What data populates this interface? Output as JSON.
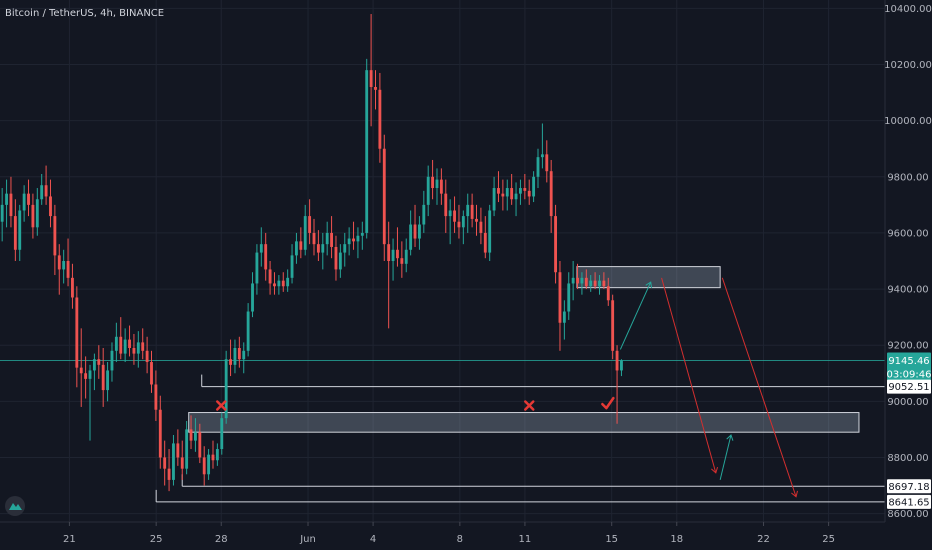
{
  "header": {
    "title": "Bitcoin / TetherUS, 4h, BINANCE"
  },
  "colors": {
    "background": "#131722",
    "grid": "#1f2431",
    "up": "#26a69a",
    "down": "#ef5350",
    "axis_text": "#b2b5be",
    "box_fill": "#b2c4d8",
    "arrow_red": "#d32f2f",
    "arrow_green": "#26a69a",
    "current_price": "#26a69a",
    "tag_light": "#ffffff"
  },
  "icons": {
    "logo": "tradingview-logo-icon",
    "cross": "x-mark-icon",
    "check": "check-mark-icon"
  },
  "chart_data": {
    "type": "candlestick",
    "symbol": "Bitcoin / TetherUS",
    "interval": "4h",
    "exchange": "BINANCE",
    "title": "Bitcoin / TetherUS, 4h, BINANCE",
    "ylim": [
      8570,
      10430
    ],
    "yticks": [
      10400,
      10200,
      10000,
      9800,
      9600,
      9400,
      9200,
      9000,
      8800,
      8600
    ],
    "ytick_labels": [
      "10400.00",
      "10200.00",
      "10000.00",
      "9800.00",
      "9600.00",
      "9400.00",
      "9200.00",
      "9000.00",
      "8800.00",
      "8600.00"
    ],
    "xticks": [
      {
        "day": 21,
        "label": "21"
      },
      {
        "day": 25,
        "label": "25"
      },
      {
        "day": 28,
        "label": "28"
      },
      {
        "day": 32,
        "label": "Jun"
      },
      {
        "day": 35,
        "label": "4"
      },
      {
        "day": 39,
        "label": "8"
      },
      {
        "day": 42,
        "label": "11"
      },
      {
        "day": 46,
        "label": "15"
      },
      {
        "day": 49,
        "label": "18"
      },
      {
        "day": 53,
        "label": "22"
      },
      {
        "day": 56,
        "label": "25"
      }
    ],
    "xlim_days": [
      17.8,
      58.6
    ],
    "grid": true,
    "current_price": {
      "value": 9145.46,
      "label": "9145.46",
      "countdown": "03:09:46"
    },
    "levels": [
      {
        "value": 9052.51,
        "label": "9052.51",
        "start_day": 27.1
      },
      {
        "value": 8697.18,
        "label": "8697.18",
        "start_day": 26.2
      },
      {
        "value": 8641.65,
        "label": "8641.65",
        "start_day": 25.0
      }
    ],
    "zones": [
      {
        "name": "upper-resistance-zone",
        "start_day": 44.4,
        "end_day": 51.0,
        "top": 9480,
        "bottom": 9405
      },
      {
        "name": "lower-support-zone",
        "start_day": 26.5,
        "end_day": 57.4,
        "top": 8960,
        "bottom": 8890
      }
    ],
    "markers": [
      {
        "type": "cross",
        "day": 28.0,
        "value": 8985
      },
      {
        "type": "cross",
        "day": 42.2,
        "value": 8985
      },
      {
        "type": "check",
        "day": 45.8,
        "value": 8990
      }
    ],
    "projection_arrows": [
      {
        "color": "green",
        "from": {
          "day": 46.4,
          "value": 9185
        },
        "to": {
          "day": 47.8,
          "value": 9425
        }
      },
      {
        "color": "red",
        "from": {
          "day": 48.3,
          "value": 9440
        },
        "to": {
          "day": 50.8,
          "value": 8745
        }
      },
      {
        "color": "green",
        "from": {
          "day": 51.0,
          "value": 8720
        },
        "to": {
          "day": 51.5,
          "value": 8880
        }
      },
      {
        "color": "red",
        "from": {
          "day": 51.1,
          "value": 9440
        },
        "to": {
          "day": 54.5,
          "value": 8660
        }
      }
    ],
    "candles": [
      {
        "o": 9640,
        "h": 9760,
        "l": 9570,
        "c": 9700
      },
      {
        "o": 9700,
        "h": 9790,
        "l": 9620,
        "c": 9740
      },
      {
        "o": 9740,
        "h": 9800,
        "l": 9620,
        "c": 9660
      },
      {
        "o": 9660,
        "h": 9720,
        "l": 9500,
        "c": 9540
      },
      {
        "o": 9540,
        "h": 9700,
        "l": 9500,
        "c": 9680
      },
      {
        "o": 9680,
        "h": 9770,
        "l": 9640,
        "c": 9740
      },
      {
        "o": 9740,
        "h": 9790,
        "l": 9660,
        "c": 9700
      },
      {
        "o": 9700,
        "h": 9740,
        "l": 9580,
        "c": 9620
      },
      {
        "o": 9620,
        "h": 9760,
        "l": 9590,
        "c": 9720
      },
      {
        "o": 9720,
        "h": 9810,
        "l": 9700,
        "c": 9770
      },
      {
        "o": 9770,
        "h": 9840,
        "l": 9700,
        "c": 9730
      },
      {
        "o": 9730,
        "h": 9790,
        "l": 9620,
        "c": 9660
      },
      {
        "o": 9660,
        "h": 9700,
        "l": 9450,
        "c": 9520
      },
      {
        "o": 9520,
        "h": 9560,
        "l": 9380,
        "c": 9470
      },
      {
        "o": 9470,
        "h": 9540,
        "l": 9420,
        "c": 9500
      },
      {
        "o": 9500,
        "h": 9580,
        "l": 9410,
        "c": 9440
      },
      {
        "o": 9440,
        "h": 9490,
        "l": 9330,
        "c": 9370
      },
      {
        "o": 9370,
        "h": 9410,
        "l": 9050,
        "c": 9120
      },
      {
        "o": 9120,
        "h": 9260,
        "l": 8980,
        "c": 9100
      },
      {
        "o": 9100,
        "h": 9160,
        "l": 9010,
        "c": 9080
      },
      {
        "o": 9080,
        "h": 9130,
        "l": 8860,
        "c": 9110
      },
      {
        "o": 9110,
        "h": 9170,
        "l": 9040,
        "c": 9150
      },
      {
        "o": 9150,
        "h": 9200,
        "l": 9080,
        "c": 9130
      },
      {
        "o": 9130,
        "h": 9190,
        "l": 8980,
        "c": 9040
      },
      {
        "o": 9040,
        "h": 9140,
        "l": 9000,
        "c": 9110
      },
      {
        "o": 9110,
        "h": 9210,
        "l": 9070,
        "c": 9180
      },
      {
        "o": 9180,
        "h": 9280,
        "l": 9140,
        "c": 9230
      },
      {
        "o": 9230,
        "h": 9300,
        "l": 9150,
        "c": 9170
      },
      {
        "o": 9170,
        "h": 9260,
        "l": 9140,
        "c": 9220
      },
      {
        "o": 9220,
        "h": 9270,
        "l": 9160,
        "c": 9190
      },
      {
        "o": 9190,
        "h": 9240,
        "l": 9130,
        "c": 9170
      },
      {
        "o": 9170,
        "h": 9250,
        "l": 9120,
        "c": 9210
      },
      {
        "o": 9210,
        "h": 9260,
        "l": 9150,
        "c": 9180
      },
      {
        "o": 9180,
        "h": 9230,
        "l": 9100,
        "c": 9140
      },
      {
        "o": 9140,
        "h": 9180,
        "l": 9030,
        "c": 9060
      },
      {
        "o": 9060,
        "h": 9110,
        "l": 8930,
        "c": 8970
      },
      {
        "o": 8970,
        "h": 9020,
        "l": 8760,
        "c": 8800
      },
      {
        "o": 8800,
        "h": 8860,
        "l": 8700,
        "c": 8760
      },
      {
        "o": 8760,
        "h": 8830,
        "l": 8680,
        "c": 8720
      },
      {
        "o": 8720,
        "h": 8880,
        "l": 8700,
        "c": 8850
      },
      {
        "o": 8850,
        "h": 8900,
        "l": 8770,
        "c": 8800
      },
      {
        "o": 8800,
        "h": 8860,
        "l": 8720,
        "c": 8760
      },
      {
        "o": 8760,
        "h": 8930,
        "l": 8740,
        "c": 8900
      },
      {
        "o": 8900,
        "h": 8950,
        "l": 8830,
        "c": 8860
      },
      {
        "o": 8860,
        "h": 8940,
        "l": 8820,
        "c": 8890
      },
      {
        "o": 8890,
        "h": 8920,
        "l": 8780,
        "c": 8800
      },
      {
        "o": 8800,
        "h": 8840,
        "l": 8700,
        "c": 8740
      },
      {
        "o": 8740,
        "h": 8830,
        "l": 8720,
        "c": 8810
      },
      {
        "o": 8810,
        "h": 8860,
        "l": 8760,
        "c": 8790
      },
      {
        "o": 8790,
        "h": 8850,
        "l": 8770,
        "c": 8830
      },
      {
        "o": 8830,
        "h": 8960,
        "l": 8810,
        "c": 8940
      },
      {
        "o": 8940,
        "h": 9180,
        "l": 8920,
        "c": 9150
      },
      {
        "o": 9150,
        "h": 9220,
        "l": 9090,
        "c": 9130
      },
      {
        "o": 9130,
        "h": 9220,
        "l": 9100,
        "c": 9190
      },
      {
        "o": 9190,
        "h": 9230,
        "l": 9120,
        "c": 9150
      },
      {
        "o": 9150,
        "h": 9210,
        "l": 9100,
        "c": 9180
      },
      {
        "o": 9180,
        "h": 9350,
        "l": 9160,
        "c": 9320
      },
      {
        "o": 9320,
        "h": 9460,
        "l": 9300,
        "c": 9420
      },
      {
        "o": 9420,
        "h": 9560,
        "l": 9380,
        "c": 9530
      },
      {
        "o": 9530,
        "h": 9620,
        "l": 9480,
        "c": 9560
      },
      {
        "o": 9560,
        "h": 9600,
        "l": 9430,
        "c": 9470
      },
      {
        "o": 9470,
        "h": 9500,
        "l": 9380,
        "c": 9420
      },
      {
        "o": 9420,
        "h": 9460,
        "l": 9380,
        "c": 9410
      },
      {
        "o": 9410,
        "h": 9450,
        "l": 9380,
        "c": 9430
      },
      {
        "o": 9430,
        "h": 9460,
        "l": 9390,
        "c": 9410
      },
      {
        "o": 9410,
        "h": 9470,
        "l": 9390,
        "c": 9440
      },
      {
        "o": 9440,
        "h": 9560,
        "l": 9420,
        "c": 9520
      },
      {
        "o": 9520,
        "h": 9600,
        "l": 9490,
        "c": 9570
      },
      {
        "o": 9570,
        "h": 9620,
        "l": 9510,
        "c": 9540
      },
      {
        "o": 9540,
        "h": 9700,
        "l": 9520,
        "c": 9660
      },
      {
        "o": 9660,
        "h": 9720,
        "l": 9560,
        "c": 9600
      },
      {
        "o": 9600,
        "h": 9650,
        "l": 9520,
        "c": 9560
      },
      {
        "o": 9560,
        "h": 9610,
        "l": 9500,
        "c": 9530
      },
      {
        "o": 9530,
        "h": 9600,
        "l": 9470,
        "c": 9560
      },
      {
        "o": 9560,
        "h": 9640,
        "l": 9520,
        "c": 9600
      },
      {
        "o": 9600,
        "h": 9660,
        "l": 9510,
        "c": 9550
      },
      {
        "o": 9550,
        "h": 9590,
        "l": 9430,
        "c": 9470
      },
      {
        "o": 9470,
        "h": 9560,
        "l": 9440,
        "c": 9530
      },
      {
        "o": 9530,
        "h": 9600,
        "l": 9480,
        "c": 9560
      },
      {
        "o": 9560,
        "h": 9620,
        "l": 9520,
        "c": 9580
      },
      {
        "o": 9580,
        "h": 9640,
        "l": 9540,
        "c": 9570
      },
      {
        "o": 9570,
        "h": 9620,
        "l": 9510,
        "c": 9590
      },
      {
        "o": 9590,
        "h": 9640,
        "l": 9540,
        "c": 9600
      },
      {
        "o": 9600,
        "h": 10220,
        "l": 9580,
        "c": 10180
      },
      {
        "o": 10180,
        "h": 10380,
        "l": 9980,
        "c": 10120
      },
      {
        "o": 10120,
        "h": 10180,
        "l": 10040,
        "c": 10110
      },
      {
        "o": 10110,
        "h": 10170,
        "l": 9850,
        "c": 9900
      },
      {
        "o": 9900,
        "h": 9950,
        "l": 9500,
        "c": 9560
      },
      {
        "o": 9560,
        "h": 9640,
        "l": 9260,
        "c": 9500
      },
      {
        "o": 9500,
        "h": 9580,
        "l": 9430,
        "c": 9540
      },
      {
        "o": 9540,
        "h": 9620,
        "l": 9480,
        "c": 9510
      },
      {
        "o": 9510,
        "h": 9570,
        "l": 9440,
        "c": 9490
      },
      {
        "o": 9490,
        "h": 9580,
        "l": 9460,
        "c": 9540
      },
      {
        "o": 9540,
        "h": 9680,
        "l": 9520,
        "c": 9630
      },
      {
        "o": 9630,
        "h": 9700,
        "l": 9550,
        "c": 9580
      },
      {
        "o": 9580,
        "h": 9660,
        "l": 9540,
        "c": 9630
      },
      {
        "o": 9630,
        "h": 9750,
        "l": 9600,
        "c": 9700
      },
      {
        "o": 9700,
        "h": 9840,
        "l": 9660,
        "c": 9800
      },
      {
        "o": 9800,
        "h": 9860,
        "l": 9720,
        "c": 9760
      },
      {
        "o": 9760,
        "h": 9830,
        "l": 9700,
        "c": 9790
      },
      {
        "o": 9790,
        "h": 9830,
        "l": 9700,
        "c": 9740
      },
      {
        "o": 9740,
        "h": 9790,
        "l": 9600,
        "c": 9660
      },
      {
        "o": 9660,
        "h": 9720,
        "l": 9560,
        "c": 9680
      },
      {
        "o": 9680,
        "h": 9730,
        "l": 9600,
        "c": 9640
      },
      {
        "o": 9640,
        "h": 9700,
        "l": 9580,
        "c": 9620
      },
      {
        "o": 9620,
        "h": 9680,
        "l": 9560,
        "c": 9660
      },
      {
        "o": 9660,
        "h": 9740,
        "l": 9600,
        "c": 9700
      },
      {
        "o": 9700,
        "h": 9740,
        "l": 9620,
        "c": 9650
      },
      {
        "o": 9650,
        "h": 9700,
        "l": 9590,
        "c": 9640
      },
      {
        "o": 9640,
        "h": 9690,
        "l": 9560,
        "c": 9600
      },
      {
        "o": 9600,
        "h": 9660,
        "l": 9510,
        "c": 9530
      },
      {
        "o": 9530,
        "h": 9700,
        "l": 9500,
        "c": 9680
      },
      {
        "o": 9680,
        "h": 9800,
        "l": 9660,
        "c": 9760
      },
      {
        "o": 9760,
        "h": 9820,
        "l": 9710,
        "c": 9740
      },
      {
        "o": 9740,
        "h": 9790,
        "l": 9680,
        "c": 9730
      },
      {
        "o": 9730,
        "h": 9790,
        "l": 9680,
        "c": 9760
      },
      {
        "o": 9760,
        "h": 9810,
        "l": 9700,
        "c": 9720
      },
      {
        "o": 9720,
        "h": 9780,
        "l": 9660,
        "c": 9740
      },
      {
        "o": 9740,
        "h": 9790,
        "l": 9700,
        "c": 9760
      },
      {
        "o": 9760,
        "h": 9810,
        "l": 9720,
        "c": 9750
      },
      {
        "o": 9750,
        "h": 9790,
        "l": 9700,
        "c": 9730
      },
      {
        "o": 9730,
        "h": 9820,
        "l": 9710,
        "c": 9800
      },
      {
        "o": 9800,
        "h": 9900,
        "l": 9760,
        "c": 9870
      },
      {
        "o": 9870,
        "h": 9990,
        "l": 9830,
        "c": 9880
      },
      {
        "o": 9880,
        "h": 9930,
        "l": 9780,
        "c": 9820
      },
      {
        "o": 9820,
        "h": 9860,
        "l": 9600,
        "c": 9660
      },
      {
        "o": 9660,
        "h": 9700,
        "l": 9420,
        "c": 9460
      },
      {
        "o": 9460,
        "h": 9500,
        "l": 9180,
        "c": 9280
      },
      {
        "o": 9280,
        "h": 9360,
        "l": 9220,
        "c": 9320
      },
      {
        "o": 9320,
        "h": 9460,
        "l": 9290,
        "c": 9420
      },
      {
        "o": 9420,
        "h": 9500,
        "l": 9360,
        "c": 9440
      },
      {
        "o": 9440,
        "h": 9490,
        "l": 9400,
        "c": 9420
      },
      {
        "o": 9420,
        "h": 9460,
        "l": 9380,
        "c": 9440
      },
      {
        "o": 9440,
        "h": 9470,
        "l": 9400,
        "c": 9410
      },
      {
        "o": 9410,
        "h": 9450,
        "l": 9390,
        "c": 9430
      },
      {
        "o": 9430,
        "h": 9460,
        "l": 9400,
        "c": 9410
      },
      {
        "o": 9410,
        "h": 9450,
        "l": 9380,
        "c": 9430
      },
      {
        "o": 9430,
        "h": 9460,
        "l": 9400,
        "c": 9410
      },
      {
        "o": 9410,
        "h": 9440,
        "l": 9340,
        "c": 9360
      },
      {
        "o": 9360,
        "h": 9380,
        "l": 9150,
        "c": 9180
      },
      {
        "o": 9180,
        "h": 9200,
        "l": 8920,
        "c": 9110
      },
      {
        "o": 9110,
        "h": 9150,
        "l": 9090,
        "c": 9145.46
      }
    ]
  }
}
